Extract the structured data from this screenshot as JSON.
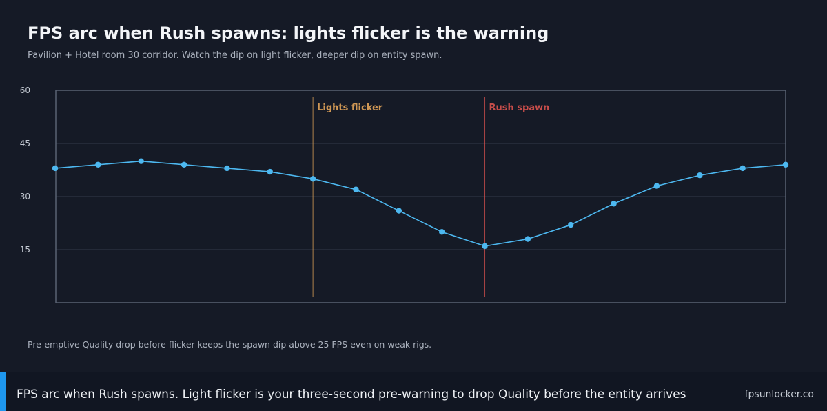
{
  "header": {
    "title": "FPS arc when Rush spawns: lights flicker is the warning",
    "subtitle": "Pavilion + Hotel room 30 corridor. Watch the dip on light flicker, deeper dip on entity spawn."
  },
  "chart_data": {
    "type": "line",
    "title": "FPS arc when Rush spawns: lights flicker is the warning",
    "subtitle": "Pavilion + Hotel room 30 corridor. Watch the dip on light flicker, deeper dip on entity spawn.",
    "xlabel": "",
    "ylabel": "",
    "ylim": [
      0,
      60
    ],
    "yticks": [
      60,
      45,
      30,
      15
    ],
    "grid": true,
    "x": [
      0,
      1,
      2,
      3,
      4,
      5,
      6,
      7,
      8,
      9,
      10,
      11,
      12,
      13,
      14,
      15,
      16,
      17
    ],
    "series": [
      {
        "values": [
          38,
          39,
          40,
          39,
          38,
          37,
          35,
          32,
          26,
          20,
          16,
          18,
          22,
          28,
          33,
          36,
          38,
          39
        ],
        "color": "#4db8f0"
      }
    ],
    "annotations": [
      {
        "label": "Lights flicker",
        "x": 6,
        "color": "#e3a55a"
      },
      {
        "label": "Rush spawn",
        "x": 10,
        "color": "#d9534f"
      }
    ],
    "line_color": "#4db8f0",
    "grid_color": "#343b4a",
    "frame_color": "#596272"
  },
  "note": "Pre-emptive Quality drop before flicker keeps the spawn dip above 25 FPS even on weak rigs.",
  "footer": {
    "caption": "FPS arc when Rush spawns. Light flicker is your three-second pre-warning to drop Quality before the entity arrives",
    "brand": "fpsunlocker.co",
    "accent_color": "#1e97ee"
  }
}
